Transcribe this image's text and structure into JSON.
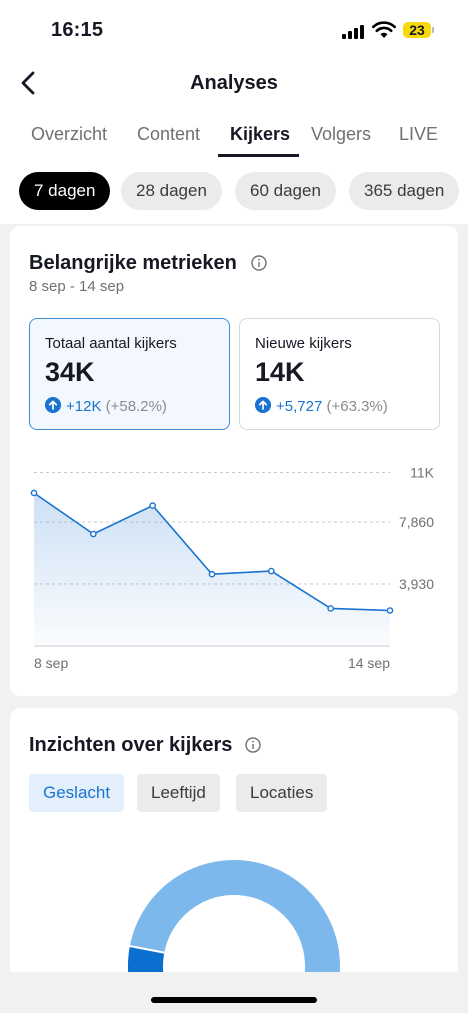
{
  "status_bar": {
    "time": "16:15",
    "battery": "23"
  },
  "nav": {
    "title": "Analyses"
  },
  "tabs": [
    {
      "label": "Overzicht",
      "active": false
    },
    {
      "label": "Content",
      "active": false
    },
    {
      "label": "Kijkers",
      "active": true
    },
    {
      "label": "Volgers",
      "active": false
    },
    {
      "label": "LIVE",
      "active": false
    }
  ],
  "ranges": [
    {
      "label": "7 dagen",
      "active": true
    },
    {
      "label": "28 dagen",
      "active": false
    },
    {
      "label": "60 dagen",
      "active": false
    },
    {
      "label": "365 dagen",
      "active": false
    }
  ],
  "metrics": {
    "title": "Belangrijke metrieken",
    "date_range": "8 sep - 14 sep",
    "cards": [
      {
        "label": "Totaal aantal kijkers",
        "value": "34K",
        "delta_abs": "+12K",
        "delta_pct": "(+58.2%)",
        "selected": true
      },
      {
        "label": "Nieuwe kijkers",
        "value": "14K",
        "delta_abs": "+5,727",
        "delta_pct": "(+63.3%)",
        "selected": false
      }
    ]
  },
  "chart_data": {
    "type": "area",
    "title": "",
    "xlabel": "",
    "ylabel": "",
    "x_tick_labels": [
      "8 sep",
      "14 sep"
    ],
    "y_tick_labels": [
      "11K",
      "7,860",
      "3,930"
    ],
    "y_ticks": [
      11000,
      7860,
      3930
    ],
    "ylim": [
      0,
      11790
    ],
    "values": [
      9700,
      7100,
      8900,
      4550,
      4750,
      2380,
      2250
    ],
    "grid": true,
    "color": "#1a73d0"
  },
  "insights": {
    "title": "Inzichten over kijkers",
    "segments": [
      {
        "label": "Geslacht",
        "active": true
      },
      {
        "label": "Leeftijd",
        "active": false
      },
      {
        "label": "Locaties",
        "active": false
      }
    ],
    "donut": {
      "dark_fraction": 0.06,
      "dark_color": "#0b6fd0",
      "light_color": "#7db8ec"
    }
  }
}
